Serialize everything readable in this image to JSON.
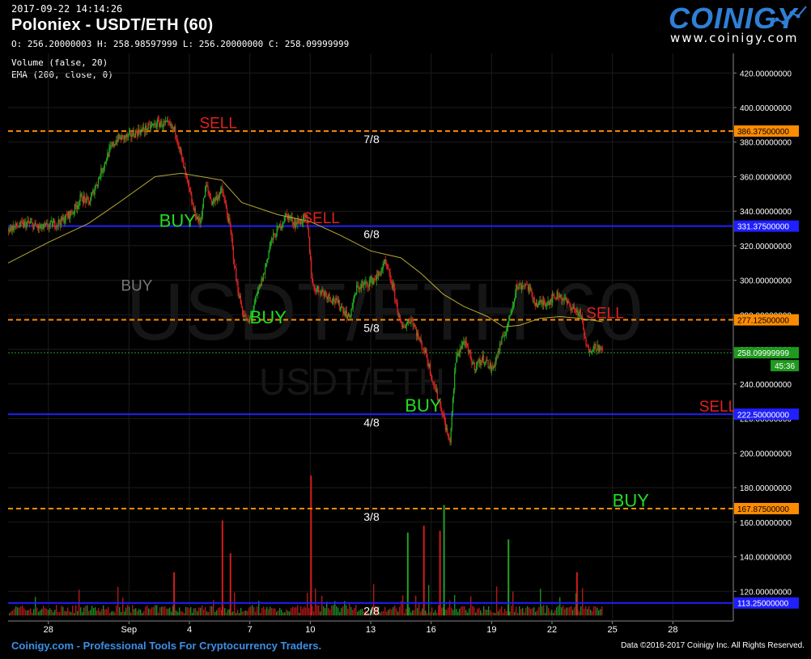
{
  "header": {
    "timestamp": "2017-09-22 14:14:26",
    "title": "Poloniex - USDT/ETH (60)",
    "ohlc": "O: 256.20000003 H: 258.98597999 L: 256.20000000 C: 258.09999999",
    "indicators": [
      "Volume (false, 20)",
      "EMA (200, close, 0)"
    ]
  },
  "brand": {
    "logo_text": "COINIGY",
    "url": "www.coinigy.com"
  },
  "footer": {
    "left": "Coinigy.com - Professional Tools For Cryptocurrency Traders.",
    "right": "Data ©2016-2017 Coinigy Inc. All Rights Reserved."
  },
  "watermark": {
    "big": "USDT/ETH 60",
    "small": "USDT/ETH"
  },
  "colors": {
    "orange_level": "#ff8c00",
    "blue_level": "#1f1fff",
    "buy": "#22dd22",
    "sell": "#e02020",
    "ema": "#b8a833",
    "grid": "#1c1c1c"
  },
  "chart_data": {
    "type": "candlestick",
    "ylim": [
      100,
      430
    ],
    "y_ticks": [
      120,
      140,
      160,
      180,
      200,
      220,
      240,
      260,
      280,
      300,
      320,
      340,
      360,
      380,
      400,
      420
    ],
    "y_tick_labels": [
      "120.00000000",
      "140.00000000",
      "160.00000000",
      "180.00000000",
      "200.00000000",
      "220.00000000",
      "240.00000000",
      "260.00000000",
      "280.00000000",
      "300.00000000",
      "320.00000000",
      "340.00000000",
      "360.00000000",
      "380.00000000",
      "400.00000000",
      "420.00000000"
    ],
    "x_tick_labels": [
      "28",
      "Sep",
      "4",
      "7",
      "10",
      "13",
      "16",
      "19",
      "22",
      "25",
      "28"
    ],
    "x_ticks_day": [
      2,
      6,
      9,
      12,
      15,
      18,
      21,
      24,
      27,
      30,
      33
    ],
    "xlim_day": [
      0,
      36
    ],
    "last_price": {
      "value": 258.1,
      "label": "258.09999999",
      "countdown": "45:36"
    },
    "levels": [
      {
        "value": 386.375,
        "label": "386.37500000",
        "fraction": "7/8",
        "style": "orange"
      },
      {
        "value": 331.375,
        "label": "331.37500000",
        "fraction": "6/8",
        "style": "blue"
      },
      {
        "value": 277.125,
        "label": "277.12500000",
        "fraction": "5/8",
        "style": "orange"
      },
      {
        "value": 222.5,
        "label": "222.50000000",
        "fraction": "4/8",
        "style": "blue"
      },
      {
        "value": 167.875,
        "label": "167.87500000",
        "fraction": "3/8",
        "style": "orange"
      },
      {
        "value": 113.25,
        "label": "113.25000000",
        "fraction": "2/8",
        "style": "blue"
      }
    ],
    "annotations": [
      {
        "text": "SELL",
        "day": 9.5,
        "value": 388,
        "kind": "sell"
      },
      {
        "text": "BUY",
        "day": 7.5,
        "value": 331,
        "kind": "buy"
      },
      {
        "text": "SELL",
        "day": 14.6,
        "value": 333,
        "kind": "sell"
      },
      {
        "text": "BUY",
        "day": 5.6,
        "value": 294,
        "kind": "gray"
      },
      {
        "text": "BUY",
        "day": 12.0,
        "value": 275,
        "kind": "buy"
      },
      {
        "text": "SELL",
        "day": 28.7,
        "value": 278,
        "kind": "sell"
      },
      {
        "text": "BUY",
        "day": 19.7,
        "value": 224,
        "kind": "buy"
      },
      {
        "text": "SELL",
        "day": 34.3,
        "value": 224,
        "kind": "sell"
      },
      {
        "text": "BUY",
        "day": 30.0,
        "value": 169,
        "kind": "buy"
      }
    ],
    "price_path": [
      [
        0.0,
        330
      ],
      [
        1.0,
        333
      ],
      [
        1.6,
        330
      ],
      [
        2.6,
        334
      ],
      [
        3.2,
        340
      ],
      [
        3.6,
        348
      ],
      [
        4.0,
        345
      ],
      [
        4.5,
        360
      ],
      [
        5.0,
        375
      ],
      [
        5.4,
        382
      ],
      [
        5.9,
        383
      ],
      [
        6.4,
        386
      ],
      [
        6.9,
        388
      ],
      [
        7.4,
        391
      ],
      [
        7.9,
        390
      ],
      [
        8.3,
        386
      ],
      [
        8.6,
        370
      ],
      [
        8.9,
        355
      ],
      [
        9.2,
        340
      ],
      [
        9.5,
        333
      ],
      [
        9.8,
        355
      ],
      [
        10.1,
        345
      ],
      [
        10.6,
        352
      ],
      [
        11.0,
        330
      ],
      [
        11.3,
        300
      ],
      [
        11.6,
        282
      ],
      [
        11.9,
        275
      ],
      [
        12.3,
        290
      ],
      [
        12.7,
        305
      ],
      [
        13.0,
        322
      ],
      [
        13.4,
        330
      ],
      [
        13.8,
        338
      ],
      [
        14.2,
        333
      ],
      [
        14.8,
        336
      ],
      [
        15.1,
        296
      ],
      [
        15.5,
        294
      ],
      [
        16.0,
        290
      ],
      [
        16.5,
        285
      ],
      [
        16.9,
        278
      ],
      [
        17.3,
        296
      ],
      [
        17.8,
        298
      ],
      [
        18.3,
        302
      ],
      [
        18.7,
        310
      ],
      [
        19.1,
        295
      ],
      [
        19.5,
        272
      ],
      [
        20.0,
        278
      ],
      [
        20.4,
        265
      ],
      [
        20.7,
        258
      ],
      [
        21.1,
        240
      ],
      [
        21.5,
        225
      ],
      [
        21.9,
        205
      ],
      [
        22.2,
        255
      ],
      [
        22.6,
        265
      ],
      [
        23.1,
        250
      ],
      [
        23.6,
        255
      ],
      [
        24.0,
        248
      ],
      [
        24.4,
        262
      ],
      [
        24.8,
        275
      ],
      [
        25.2,
        296
      ],
      [
        25.7,
        298
      ],
      [
        26.2,
        286
      ],
      [
        26.8,
        288
      ],
      [
        27.3,
        292
      ],
      [
        27.8,
        286
      ],
      [
        28.4,
        280
      ],
      [
        28.7,
        260
      ],
      [
        29.2,
        262
      ],
      [
        29.5,
        258
      ]
    ],
    "ema_path": [
      [
        0.0,
        310
      ],
      [
        2.0,
        322
      ],
      [
        4.0,
        333
      ],
      [
        5.5,
        345
      ],
      [
        7.3,
        360
      ],
      [
        8.6,
        362
      ],
      [
        10.6,
        358
      ],
      [
        11.6,
        345
      ],
      [
        13.4,
        338
      ],
      [
        15.0,
        334
      ],
      [
        16.5,
        326
      ],
      [
        18.0,
        317
      ],
      [
        19.5,
        313
      ],
      [
        20.5,
        304
      ],
      [
        21.6,
        292
      ],
      [
        22.6,
        285
      ],
      [
        23.8,
        279
      ],
      [
        24.6,
        273
      ],
      [
        25.4,
        274
      ],
      [
        26.4,
        278
      ],
      [
        27.4,
        279
      ],
      [
        28.4,
        278
      ],
      [
        29.5,
        276
      ]
    ],
    "volume": {
      "base_value": 106,
      "top_value": 187,
      "spikes": [
        {
          "day": 8.2,
          "peak": 131,
          "color": "red"
        },
        {
          "day": 10.6,
          "peak": 161,
          "color": "red"
        },
        {
          "day": 11.0,
          "peak": 142,
          "color": "red"
        },
        {
          "day": 15.0,
          "peak": 187,
          "color": "red"
        },
        {
          "day": 19.8,
          "peak": 154,
          "color": "green"
        },
        {
          "day": 20.6,
          "peak": 158,
          "color": "red"
        },
        {
          "day": 21.6,
          "peak": 170,
          "color": "green"
        },
        {
          "day": 21.4,
          "peak": 155,
          "color": "red"
        },
        {
          "day": 24.8,
          "peak": 150,
          "color": "green"
        },
        {
          "day": 28.2,
          "peak": 131,
          "color": "red"
        }
      ]
    }
  }
}
